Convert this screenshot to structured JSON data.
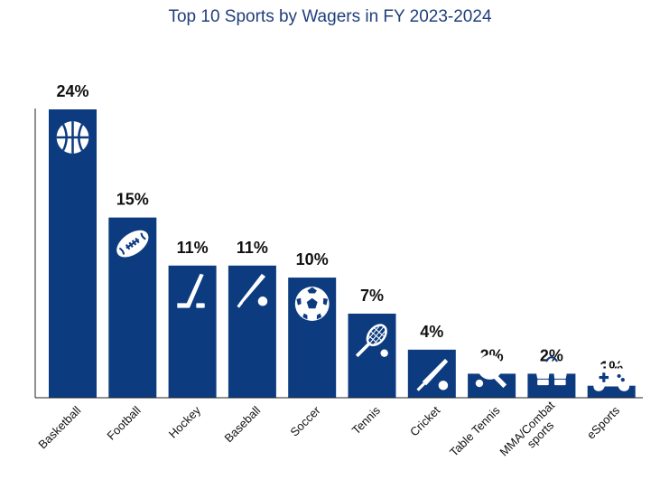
{
  "chart_data": {
    "type": "bar",
    "title": "Top 10 Sports by Wagers in FY 2023-2024",
    "categories": [
      "Basketball",
      "Football",
      "Hockey",
      "Baseball",
      "Soccer",
      "Tennis",
      "Cricket",
      "Table Tennis",
      "MMA/Combat sports",
      "eSports"
    ],
    "category_label_lines": [
      [
        "Basketball"
      ],
      [
        "Football"
      ],
      [
        "Hockey"
      ],
      [
        "Baseball"
      ],
      [
        "Soccer"
      ],
      [
        "Tennis"
      ],
      [
        "Cricket"
      ],
      [
        "Table Tennis"
      ],
      [
        "MMA/Combat",
        "sports"
      ],
      [
        "eSports"
      ]
    ],
    "values": [
      24,
      15,
      11,
      11,
      10,
      7,
      4,
      2,
      2,
      1
    ],
    "value_labels": [
      "24%",
      "15%",
      "11%",
      "11%",
      "10%",
      "7%",
      "4%",
      "2%",
      "2%",
      "1%"
    ],
    "icons": [
      "basketball-icon",
      "football-icon",
      "hockey-stick-icon",
      "baseball-bat-icon",
      "soccer-ball-icon",
      "tennis-racket-icon",
      "cricket-bat-icon",
      "table-tennis-paddle-icon",
      "boxing-gloves-icon",
      "gamepad-icon"
    ],
    "ylim": [
      0,
      24
    ],
    "grid": false,
    "bar_color": "#0d3b80",
    "xlabel": "",
    "ylabel": ""
  }
}
